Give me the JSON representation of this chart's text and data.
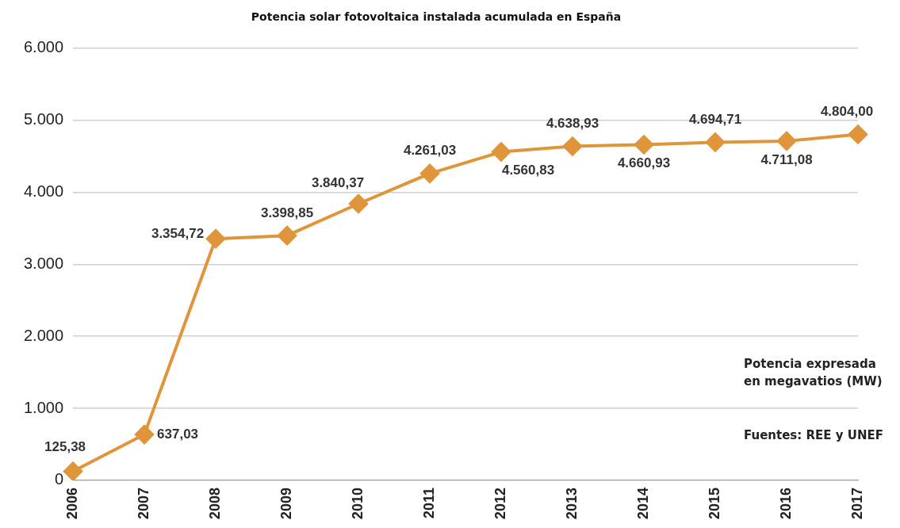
{
  "chart_data": {
    "type": "line",
    "title": "Potencia solar fotovoltaica instalada acumulada en España",
    "categories": [
      "2006",
      "2007",
      "2008",
      "2009",
      "2010",
      "2011",
      "2012",
      "2013",
      "2014",
      "2015",
      "2016",
      "2017"
    ],
    "series": [
      {
        "color": "#e0953a",
        "values": [
          125.38,
          637.03,
          3354.72,
          3398.85,
          3840.37,
          4261.03,
          4560.83,
          4638.93,
          4660.93,
          4694.71,
          4711.08,
          4804.0
        ],
        "value_labels": [
          "125,38",
          "637,03",
          "3.354,72",
          "3.398,85",
          "3.840,37",
          "4.261,03",
          "4.560,83",
          "4.638,93",
          "4.660,93",
          "4.694,71",
          "4.711,08",
          "4.804,00"
        ]
      }
    ],
    "ylim": [
      0,
      6000
    ],
    "yticks": [
      {
        "value": 0,
        "label": "0"
      },
      {
        "value": 1000,
        "label": "1.000"
      },
      {
        "value": 2000,
        "label": "2.000"
      },
      {
        "value": 3000,
        "label": "3.000"
      },
      {
        "value": 4000,
        "label": "4.000"
      },
      {
        "value": 5000,
        "label": "5.000"
      },
      {
        "value": 6000,
        "label": "6.000"
      }
    ],
    "grid": "y",
    "legend": false,
    "marker": "diamond",
    "line_style": "solid",
    "annotations": [
      "Potencia expresada en megavatios (MW)",
      "Fuentes: REE y UNEF"
    ]
  }
}
